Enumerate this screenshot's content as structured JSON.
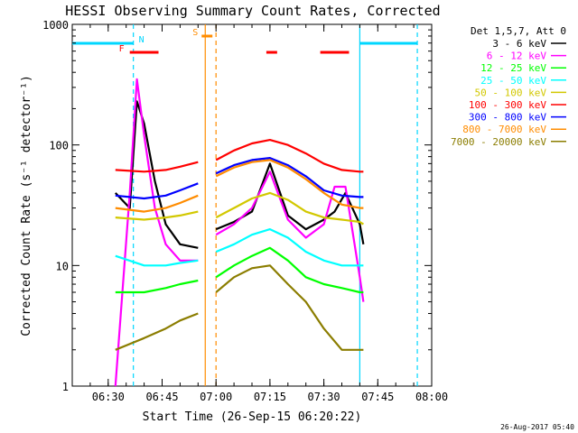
{
  "chart_data": {
    "type": "line",
    "title": "HESSI Observing Summary Count Rates, Corrected",
    "ylabel": "Corrected Count Rate (s⁻¹ detector⁻¹)",
    "xlabel": "Start Time (26-Sep-15 06:20:22)",
    "xlim": [
      "06:20",
      "08:00"
    ],
    "ylim": [
      1,
      1000
    ],
    "yscale": "log",
    "x_ticks": [
      "06:30",
      "06:45",
      "07:00",
      "07:15",
      "07:30",
      "07:45",
      "08:00"
    ],
    "y_ticks": [
      "1",
      "10",
      "100",
      "1000"
    ],
    "legend_title": "Det 1,5,7, Att 0",
    "legend_placement": "right",
    "footer": "26-Aug-2017 05:40",
    "gap": [
      "06:57",
      "07:00"
    ],
    "flags": [
      {
        "label": "F",
        "color": "#ff0000",
        "spans": [
          [
            "06:36",
            "06:44"
          ],
          [
            "07:14",
            "07:17"
          ],
          [
            "07:29",
            "07:37"
          ]
        ]
      },
      {
        "label": "N",
        "color": "#00d7ff",
        "spans": [
          [
            "06:20",
            "06:37"
          ],
          [
            "07:40",
            "07:56"
          ]
        ]
      },
      {
        "label": "S",
        "color": "#ff8c00",
        "spans": [
          [
            "06:56",
            "06:59"
          ]
        ]
      }
    ],
    "markers": [
      {
        "time": "06:37",
        "color": "#00d7ff",
        "style": "dashed"
      },
      {
        "time": "06:57",
        "color": "#ff8c00",
        "style": "solid"
      },
      {
        "time": "07:00",
        "color": "#ff8c00",
        "style": "dashed"
      },
      {
        "time": "07:40",
        "color": "#00d7ff",
        "style": "solid"
      },
      {
        "time": "07:56",
        "color": "#00d7ff",
        "style": "dashed"
      }
    ],
    "series": [
      {
        "name": "3 - 6 keV",
        "color": "#000000",
        "x": [
          "06:32",
          "06:36",
          "06:38",
          "06:40",
          "06:43",
          "06:46",
          "06:50",
          "06:55",
          "07:00",
          "07:05",
          "07:10",
          "07:15",
          "07:20",
          "07:25",
          "07:30",
          "07:33",
          "07:36",
          "07:40",
          "07:41"
        ],
        "y": [
          40,
          30,
          230,
          150,
          50,
          22,
          15,
          14,
          20,
          23,
          28,
          70,
          26,
          20,
          24,
          28,
          40,
          22,
          15
        ]
      },
      {
        "name": "6 - 12 keV",
        "color": "#ff00ff",
        "x": [
          "06:32",
          "06:36",
          "06:38",
          "06:40",
          "06:43",
          "06:46",
          "06:50",
          "06:55",
          "07:00",
          "07:05",
          "07:10",
          "07:15",
          "07:20",
          "07:25",
          "07:30",
          "07:33",
          "07:36",
          "07:40",
          "07:41"
        ],
        "y": [
          1,
          40,
          350,
          120,
          30,
          15,
          11,
          11,
          18,
          22,
          30,
          60,
          24,
          17,
          22,
          45,
          45,
          8,
          5
        ]
      },
      {
        "name": "12 - 25 keV",
        "color": "#00ff00",
        "x": [
          "06:32",
          "06:40",
          "06:46",
          "06:50",
          "06:55",
          "07:00",
          "07:05",
          "07:10",
          "07:15",
          "07:20",
          "07:25",
          "07:30",
          "07:35",
          "07:40",
          "07:41"
        ],
        "y": [
          6,
          6,
          6.5,
          7,
          7.5,
          8,
          10,
          12,
          14,
          11,
          8,
          7,
          6.5,
          6,
          6
        ]
      },
      {
        "name": "25 - 50 keV",
        "color": "#00ffff",
        "x": [
          "06:32",
          "06:40",
          "06:46",
          "06:50",
          "06:55",
          "07:00",
          "07:05",
          "07:10",
          "07:15",
          "07:20",
          "07:25",
          "07:30",
          "07:35",
          "07:40",
          "07:41"
        ],
        "y": [
          12,
          10,
          10,
          10.5,
          11,
          13,
          15,
          18,
          20,
          17,
          13,
          11,
          10,
          10,
          10
        ]
      },
      {
        "name": "50 - 100 keV",
        "color": "#d2c800",
        "x": [
          "06:32",
          "06:40",
          "06:46",
          "06:50",
          "06:55",
          "07:00",
          "07:05",
          "07:10",
          "07:15",
          "07:20",
          "07:25",
          "07:30",
          "07:35",
          "07:40",
          "07:41"
        ],
        "y": [
          25,
          24,
          25,
          26,
          28,
          25,
          30,
          36,
          40,
          35,
          28,
          25,
          24,
          23,
          22
        ]
      },
      {
        "name": "100 - 300 keV",
        "color": "#ff0000",
        "x": [
          "06:32",
          "06:40",
          "06:46",
          "06:50",
          "06:55",
          "07:00",
          "07:05",
          "07:10",
          "07:15",
          "07:20",
          "07:25",
          "07:30",
          "07:35",
          "07:40",
          "07:41"
        ],
        "y": [
          62,
          60,
          62,
          66,
          72,
          75,
          90,
          103,
          110,
          100,
          85,
          70,
          62,
          60,
          60
        ]
      },
      {
        "name": "300 - 800 keV",
        "color": "#0000ff",
        "x": [
          "06:32",
          "06:40",
          "06:46",
          "06:50",
          "06:55",
          "07:00",
          "07:05",
          "07:10",
          "07:15",
          "07:20",
          "07:25",
          "07:30",
          "07:35",
          "07:40",
          "07:41"
        ],
        "y": [
          38,
          36,
          38,
          42,
          48,
          58,
          68,
          75,
          78,
          68,
          55,
          42,
          38,
          37,
          37
        ]
      },
      {
        "name": "800 - 7000 keV",
        "color": "#ff8c00",
        "x": [
          "06:32",
          "06:40",
          "06:46",
          "06:50",
          "06:55",
          "07:00",
          "07:05",
          "07:10",
          "07:15",
          "07:20",
          "07:25",
          "07:30",
          "07:35",
          "07:40",
          "07:41"
        ],
        "y": [
          30,
          28,
          30,
          33,
          38,
          55,
          65,
          72,
          75,
          65,
          52,
          40,
          32,
          30,
          30
        ]
      },
      {
        "name": "7000 - 20000 keV",
        "color": "#8b7d00",
        "x": [
          "06:32",
          "06:40",
          "06:46",
          "06:50",
          "06:55",
          "07:00",
          "07:05",
          "07:10",
          "07:15",
          "07:20",
          "07:25",
          "07:30",
          "07:35",
          "07:40",
          "07:41"
        ],
        "y": [
          2,
          2.5,
          3,
          3.5,
          4,
          6,
          8,
          9.5,
          10,
          7,
          5,
          3,
          2,
          2,
          2
        ]
      }
    ]
  }
}
